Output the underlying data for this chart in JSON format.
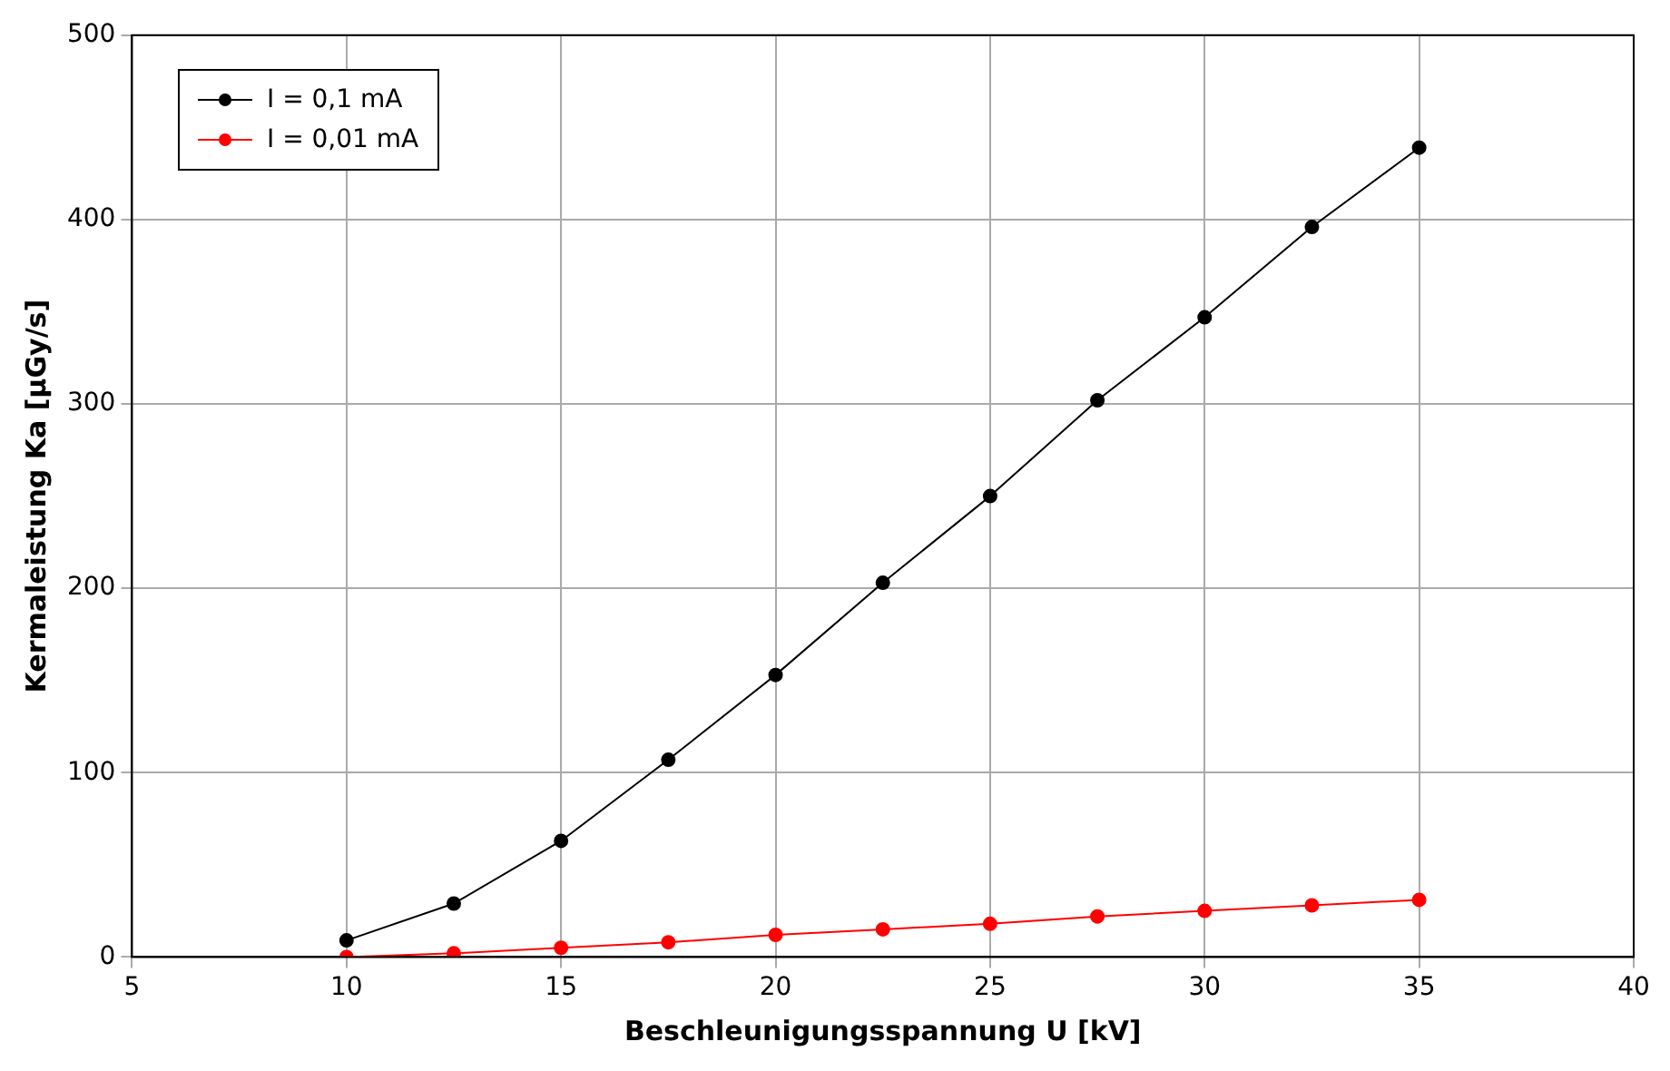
{
  "chart_data": {
    "type": "line",
    "xlabel": "Beschleunigungsspannung U [kV]",
    "ylabel": "Kermaleistung Ka [µGy/s]",
    "x": [
      10,
      12.5,
      15,
      17.5,
      20,
      22.5,
      25,
      27.5,
      30,
      32.5,
      35
    ],
    "series": [
      {
        "name": "I = 0,1 mA",
        "color": "#000000",
        "values": [
          9,
          29,
          63,
          107,
          153,
          203,
          250,
          302,
          347,
          396,
          439
        ]
      },
      {
        "name": "I = 0,01 mA",
        "color": "#ff0000",
        "values": [
          0,
          2,
          5,
          8,
          12,
          15,
          18,
          22,
          25,
          28,
          31
        ]
      }
    ],
    "xlim": [
      5,
      40
    ],
    "xticks": [
      5,
      10,
      15,
      20,
      25,
      30,
      35,
      40
    ],
    "ylim": [
      0,
      500
    ],
    "yticks": [
      0,
      100,
      200,
      300,
      400,
      500
    ],
    "grid": true,
    "legend": "top left",
    "marker": "circle",
    "line_style": "solid"
  }
}
